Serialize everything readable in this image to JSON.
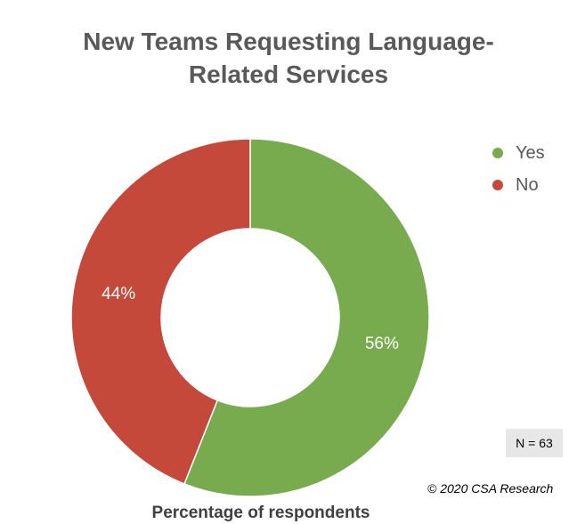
{
  "chart_data": {
    "type": "pie",
    "variant": "donut",
    "title_lines": [
      "New Teams Requesting Language-",
      "Related Services"
    ],
    "xlabel": "Percentage of respondents",
    "slices": [
      {
        "label": "Yes",
        "value": 56,
        "value_label": "56%",
        "color": "#77ab4d"
      },
      {
        "label": "No",
        "value": 44,
        "value_label": "44%",
        "color": "#c5493a"
      }
    ],
    "legend_position": "top-right",
    "annotations": {
      "sample_size": "N = 63",
      "copyright": "© 2020 CSA Research"
    }
  }
}
